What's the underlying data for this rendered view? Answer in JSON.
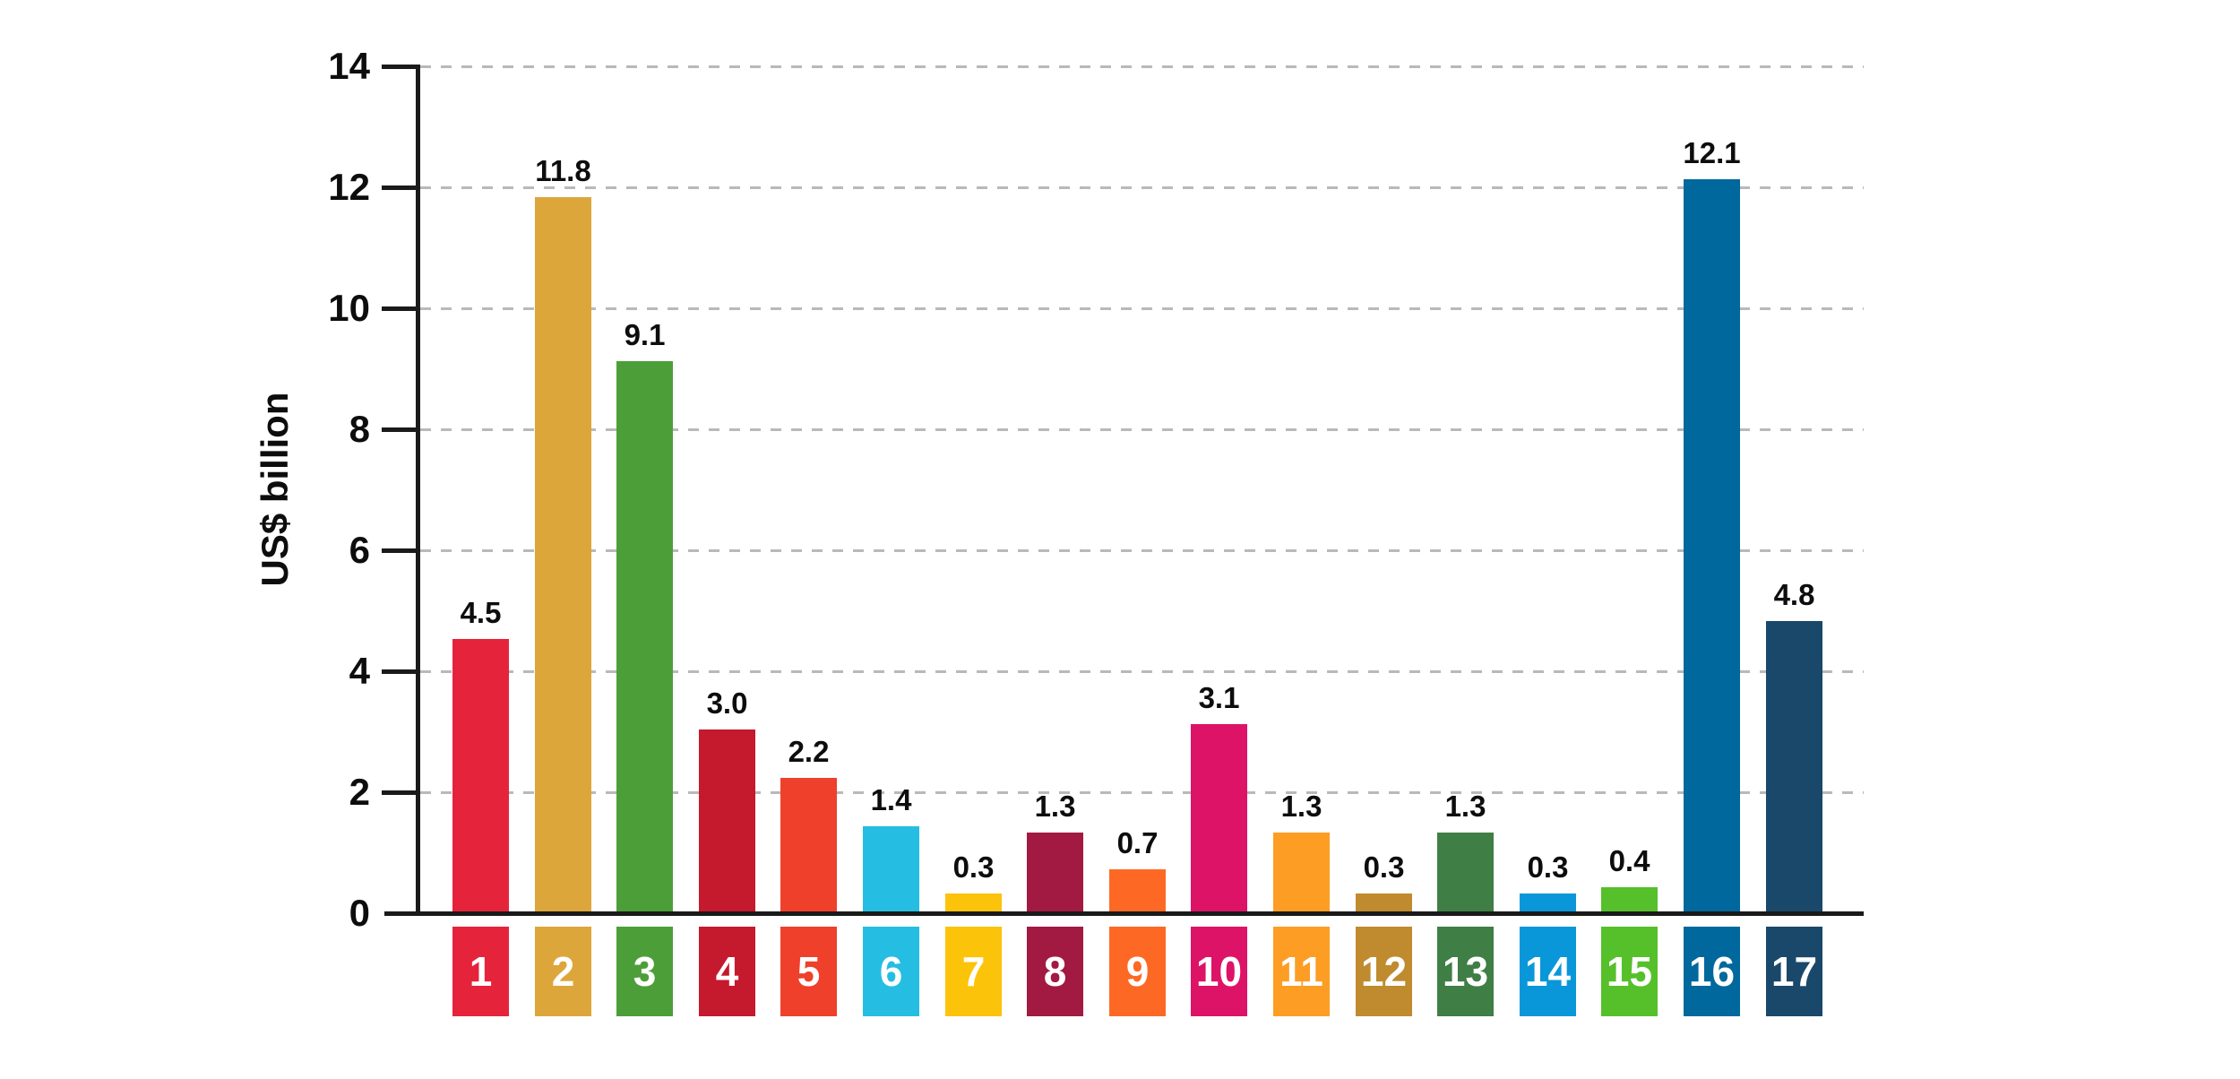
{
  "chart_data": {
    "type": "bar",
    "ylabel": "US$ billion",
    "ylim": [
      0,
      14
    ],
    "yticks": [
      "0",
      "2",
      "4",
      "6",
      "8",
      "10",
      "12",
      "14"
    ],
    "ytick_values": [
      0,
      2,
      4,
      6,
      8,
      10,
      12,
      14
    ],
    "grid": "horizontal-dashed",
    "legend_position": "none",
    "categories": [
      "1",
      "2",
      "3",
      "4",
      "5",
      "6",
      "7",
      "8",
      "9",
      "10",
      "11",
      "12",
      "13",
      "14",
      "15",
      "16",
      "17"
    ],
    "values": [
      4.5,
      11.8,
      9.1,
      3.0,
      2.2,
      1.4,
      0.3,
      1.3,
      0.7,
      3.1,
      1.3,
      0.3,
      1.3,
      0.3,
      0.4,
      12.1,
      4.8
    ],
    "value_labels": [
      "4.5",
      "11.8",
      "9.1",
      "3.0",
      "2.2",
      "1.4",
      "0.3",
      "1.3",
      "0.7",
      "3.1",
      "1.3",
      "0.3",
      "1.3",
      "0.3",
      "0.4",
      "12.1",
      "4.8"
    ],
    "bar_colors": [
      "#E5243B",
      "#DDA63A",
      "#4C9F38",
      "#C5192D",
      "#EF402B",
      "#26BDE2",
      "#FCC30B",
      "#A21942",
      "#FD6925",
      "#DD1367",
      "#FD9D24",
      "#BF8B2E",
      "#3F7E44",
      "#0A97D9",
      "#56C02B",
      "#00689D",
      "#19486A"
    ]
  },
  "colors": {
    "background": "#ffffff",
    "axis": "#1a1a1a",
    "gridline": "#b9b9b9",
    "text": "#0d0d0d",
    "category_number_text": "#ffffff"
  }
}
